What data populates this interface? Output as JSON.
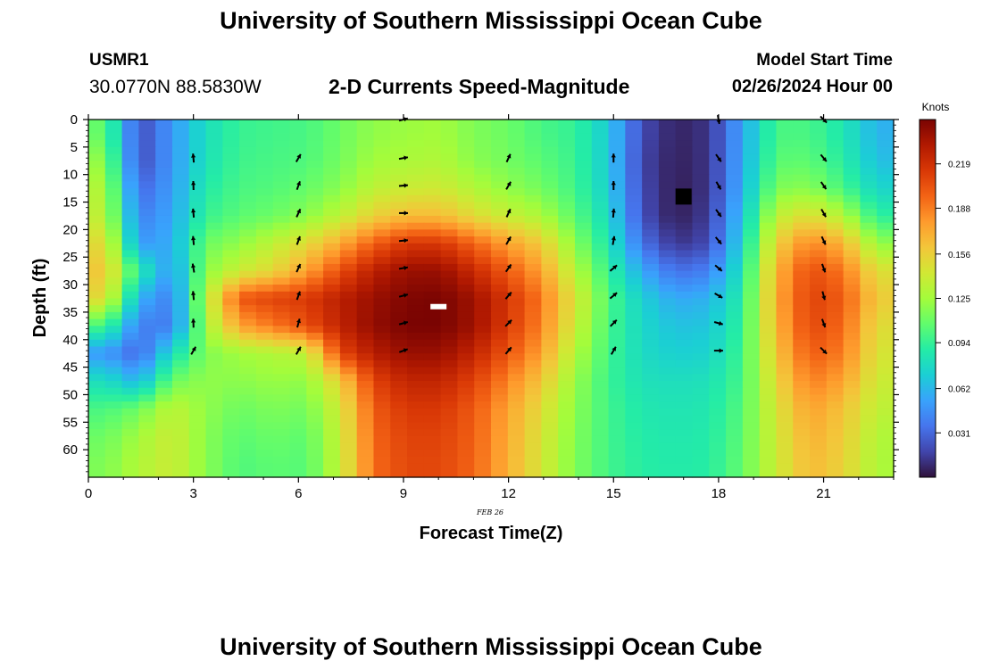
{
  "header": {
    "title": "University of Southern Mississippi Ocean Cube",
    "station": "USMR1",
    "coords": "30.0770N  88.5830W",
    "subtitle": "2-D Currents Speed-Magnitude",
    "model_start_label": "Model Start Time",
    "model_start_value": "02/26/2024 Hour 00"
  },
  "footer": {
    "title": "University of Southern Mississippi Ocean Cube"
  },
  "colors": {
    "ramp": [
      "#30123b",
      "#4145ab",
      "#4675ed",
      "#39a2fc",
      "#1bcfd4",
      "#24eca6",
      "#61fc6c",
      "#a4fc3b",
      "#d1e834",
      "#f3c63a",
      "#fe9b2d",
      "#f36315",
      "#d93806",
      "#b11901",
      "#7a0402"
    ],
    "arrow": "#000000",
    "frame": "#000000"
  },
  "chart_data": {
    "type": "heatmap",
    "title": "2-D Currents Speed-Magnitude",
    "xlabel": "Forecast Time(Z)",
    "ylabel": "Depth (ft)",
    "date_label": "FEB 26",
    "xlim": [
      0,
      23
    ],
    "ylim": [
      0,
      65
    ],
    "y_inverted": true,
    "x_ticks": [
      0,
      3,
      6,
      9,
      12,
      15,
      18,
      21
    ],
    "y_ticks": [
      0,
      5,
      10,
      15,
      20,
      25,
      30,
      35,
      40,
      45,
      50,
      55,
      60
    ],
    "colorbar": {
      "label": "Knots",
      "range": [
        0.0,
        0.25
      ],
      "ticks": [
        "0.031",
        "0.062",
        "0.094",
        "0.125",
        "0.156",
        "0.188",
        "0.219"
      ]
    },
    "depths": [
      2,
      7,
      12,
      17,
      22,
      27,
      32,
      37,
      42,
      47,
      52,
      57,
      62
    ],
    "hours": [
      0,
      1,
      2,
      3,
      4,
      5,
      6,
      7,
      8,
      9,
      10,
      11,
      12,
      13,
      14,
      15,
      16,
      17,
      18,
      19,
      20,
      21,
      22,
      23
    ],
    "speed": [
      [
        0.108,
        0.02,
        0.05,
        0.08,
        0.095,
        0.098,
        0.1,
        0.11,
        0.12,
        0.123,
        0.125,
        0.115,
        0.11,
        0.1,
        0.094,
        0.07,
        0.02,
        0.006,
        0.012,
        0.055,
        0.1,
        0.1,
        0.085,
        0.06
      ],
      [
        0.12,
        0.02,
        0.05,
        0.082,
        0.097,
        0.1,
        0.102,
        0.112,
        0.125,
        0.128,
        0.13,
        0.118,
        0.112,
        0.105,
        0.096,
        0.07,
        0.018,
        0.005,
        0.012,
        0.057,
        0.105,
        0.106,
        0.09,
        0.065
      ],
      [
        0.13,
        0.03,
        0.052,
        0.088,
        0.1,
        0.103,
        0.108,
        0.118,
        0.135,
        0.14,
        0.142,
        0.13,
        0.12,
        0.112,
        0.098,
        0.072,
        0.02,
        0.004,
        0.012,
        0.06,
        0.115,
        0.118,
        0.1,
        0.075
      ],
      [
        0.135,
        0.04,
        0.055,
        0.095,
        0.105,
        0.11,
        0.118,
        0.135,
        0.155,
        0.165,
        0.165,
        0.15,
        0.138,
        0.128,
        0.105,
        0.078,
        0.022,
        0.004,
        0.015,
        0.068,
        0.135,
        0.15,
        0.13,
        0.092
      ],
      [
        0.15,
        0.05,
        0.058,
        0.11,
        0.12,
        0.135,
        0.15,
        0.172,
        0.198,
        0.215,
        0.215,
        0.196,
        0.176,
        0.158,
        0.118,
        0.085,
        0.035,
        0.012,
        0.02,
        0.076,
        0.155,
        0.186,
        0.168,
        0.12
      ],
      [
        0.16,
        0.09,
        0.05,
        0.118,
        0.14,
        0.152,
        0.175,
        0.205,
        0.228,
        0.24,
        0.24,
        0.222,
        0.2,
        0.176,
        0.132,
        0.094,
        0.056,
        0.034,
        0.04,
        0.084,
        0.168,
        0.206,
        0.19,
        0.148
      ],
      [
        0.15,
        0.06,
        0.04,
        0.13,
        0.202,
        0.21,
        0.214,
        0.228,
        0.24,
        0.248,
        0.25,
        0.238,
        0.216,
        0.19,
        0.145,
        0.102,
        0.072,
        0.056,
        0.06,
        0.09,
        0.172,
        0.21,
        0.2,
        0.158
      ],
      [
        0.1,
        0.04,
        0.04,
        0.124,
        0.175,
        0.19,
        0.205,
        0.226,
        0.242,
        0.25,
        0.25,
        0.238,
        0.214,
        0.186,
        0.14,
        0.1,
        0.076,
        0.066,
        0.068,
        0.094,
        0.168,
        0.208,
        0.195,
        0.15
      ],
      [
        0.05,
        0.03,
        0.08,
        0.115,
        0.125,
        0.13,
        0.135,
        0.208,
        0.23,
        0.24,
        0.24,
        0.225,
        0.202,
        0.176,
        0.13,
        0.098,
        0.078,
        0.072,
        0.074,
        0.098,
        0.16,
        0.2,
        0.188,
        0.145
      ],
      [
        0.08,
        0.06,
        0.11,
        0.12,
        0.118,
        0.122,
        0.12,
        0.156,
        0.21,
        0.225,
        0.225,
        0.21,
        0.186,
        0.16,
        0.122,
        0.096,
        0.082,
        0.08,
        0.082,
        0.1,
        0.152,
        0.188,
        0.175,
        0.14
      ],
      [
        0.1,
        0.11,
        0.135,
        0.12,
        0.11,
        0.115,
        0.112,
        0.142,
        0.2,
        0.215,
        0.215,
        0.2,
        0.175,
        0.15,
        0.118,
        0.098,
        0.086,
        0.084,
        0.086,
        0.104,
        0.145,
        0.176,
        0.162,
        0.135
      ],
      [
        0.11,
        0.125,
        0.14,
        0.118,
        0.105,
        0.11,
        0.106,
        0.138,
        0.196,
        0.21,
        0.21,
        0.198,
        0.172,
        0.146,
        0.116,
        0.098,
        0.088,
        0.086,
        0.088,
        0.106,
        0.142,
        0.17,
        0.158,
        0.13
      ],
      [
        0.115,
        0.13,
        0.14,
        0.118,
        0.102,
        0.106,
        0.104,
        0.136,
        0.194,
        0.208,
        0.208,
        0.196,
        0.17,
        0.144,
        0.115,
        0.098,
        0.09,
        0.088,
        0.09,
        0.108,
        0.14,
        0.166,
        0.155,
        0.128
      ]
    ],
    "vectors": [
      {
        "hour": 3,
        "depths": [
          7,
          12,
          17,
          22,
          27,
          32,
          37,
          42
        ],
        "angles": [
          -95,
          -92,
          -95,
          -95,
          -100,
          -95,
          -92,
          -60
        ]
      },
      {
        "hour": 6,
        "depths": [
          7,
          12,
          17,
          22,
          27,
          32,
          37,
          42
        ],
        "angles": [
          -60,
          -70,
          -65,
          -70,
          -65,
          -70,
          -75,
          -60
        ]
      },
      {
        "hour": 9,
        "depths": [
          0,
          7,
          12,
          17,
          22,
          27,
          32,
          37,
          42
        ],
        "angles": [
          -15,
          -10,
          -5,
          0,
          -5,
          -10,
          -15,
          -15,
          -20
        ]
      },
      {
        "hour": 12,
        "depths": [
          7,
          12,
          17,
          22,
          27,
          32,
          37,
          42
        ],
        "angles": [
          -65,
          -60,
          -65,
          -60,
          -55,
          -50,
          -45,
          -50
        ]
      },
      {
        "hour": 15,
        "depths": [
          7,
          12,
          17,
          22,
          27,
          32,
          37,
          42
        ],
        "angles": [
          -90,
          -90,
          -85,
          -80,
          -40,
          -40,
          -45,
          -60
        ]
      },
      {
        "hour": 18,
        "depths": [
          0,
          7,
          12,
          17,
          22,
          27,
          32,
          37,
          42
        ],
        "angles": [
          80,
          55,
          60,
          55,
          50,
          40,
          30,
          15,
          0
        ]
      },
      {
        "hour": 21,
        "depths": [
          0,
          7,
          12,
          17,
          22,
          27,
          32,
          37,
          42
        ],
        "angles": [
          45,
          50,
          55,
          60,
          65,
          70,
          75,
          70,
          45
        ]
      }
    ],
    "markers": [
      {
        "kind": "max",
        "hour": 10,
        "depth": 34,
        "color": "#ffffff"
      },
      {
        "kind": "min",
        "hour": 17,
        "depth": 14,
        "color": "#000000"
      }
    ]
  }
}
